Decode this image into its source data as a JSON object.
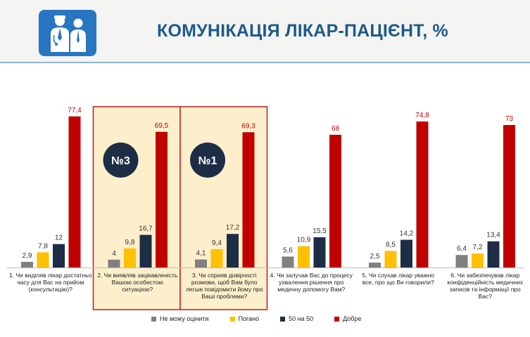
{
  "title": "КОМУНІКАЦІЯ ЛІКАР-ПАЦІЄНТ, %",
  "logo_icon": "doctor-patient-icon",
  "colors": {
    "series": [
      "#808080",
      "#ffc000",
      "#1c2d45",
      "#c00000"
    ],
    "highlight_fill": "#fdefcb",
    "highlight_border": "#c0282e",
    "badge": "#1c2d45"
  },
  "badges": [
    {
      "group": 1,
      "text": "№3"
    },
    {
      "group": 2,
      "text": "№1"
    }
  ],
  "highlighted_groups": [
    1,
    2
  ],
  "chart_data": {
    "type": "bar",
    "categories": [
      [
        "1. Чи виділяв лікар достатньо",
        "часу для Вас на прийом",
        "(консультацію)?"
      ],
      [
        "2. Чи виявляв зацікавленість",
        "Вашою особистою",
        "ситуацією?"
      ],
      [
        "3. Чи сприяв довірчості",
        "розмови, щоб Вам було",
        "легше повідомити йому про",
        "Ваші проблеми?"
      ],
      [
        "4. Чи залучав Вас до процесу",
        "ухвалення рішення про",
        "медичну допомогу Вам?"
      ],
      [
        "5. Чи слухав лікар уважно",
        "все, про що Ви говорили?"
      ],
      [
        "6. Чи забезпечував лікар",
        "конфіденційність медичних",
        "записів та інформації про",
        "Вас?"
      ]
    ],
    "series": [
      {
        "name": "Не можу оцінити",
        "values": [
          2.9,
          4,
          4.1,
          5.6,
          2.5,
          6.4
        ],
        "labels": [
          "2,9",
          "4",
          "4,1",
          "5,6",
          "2,5",
          "6,4"
        ]
      },
      {
        "name": "Погано",
        "values": [
          7.8,
          9.8,
          9.4,
          10.9,
          8.5,
          7.2
        ],
        "labels": [
          "7,8",
          "9,8",
          "9,4",
          "10,9",
          "8,5",
          "7,2"
        ]
      },
      {
        "name": "50 на 50",
        "values": [
          12,
          16.7,
          17.2,
          15.5,
          14.2,
          13.4
        ],
        "labels": [
          "12",
          "16,7",
          "17,2",
          "15,5",
          "14,2",
          "13,4"
        ]
      },
      {
        "name": "Добре",
        "values": [
          77.4,
          69.5,
          69.3,
          68,
          74.8,
          73
        ],
        "labels": [
          "77,4",
          "69,5",
          "69,3",
          "68",
          "74,8",
          "73"
        ]
      }
    ],
    "ylim": [
      0,
      80
    ],
    "legend_position": "bottom",
    "grid": false
  }
}
